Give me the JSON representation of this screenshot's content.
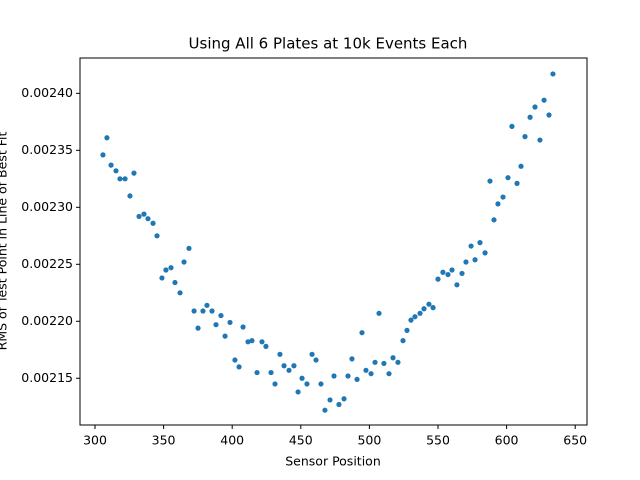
{
  "chart_data": {
    "type": "scatter",
    "title": "Using All 6 Plates at 10k Events Each",
    "x_label": "Sensor Position",
    "y_label": "RMS of Test Point in Line of Best Fit",
    "color": "#1f77b4",
    "x": [
      305.8,
      308.7,
      311.7,
      315.3,
      318.2,
      321.9,
      325.5,
      328.4,
      332.1,
      335.7,
      338.6,
      342.3,
      345.2,
      348.8,
      351.7,
      355.4,
      358.3,
      362.0,
      364.9,
      368.5,
      372.2,
      375.1,
      378.7,
      381.6,
      385.3,
      388.2,
      391.8,
      394.8,
      398.4,
      402.0,
      405.0,
      407.9,
      411.5,
      414.4,
      418.1,
      421.7,
      424.6,
      428.3,
      431.2,
      434.8,
      437.8,
      441.4,
      445.0,
      448.0,
      450.9,
      454.5,
      458.2,
      461.1,
      464.7,
      467.6,
      471.3,
      474.2,
      477.8,
      481.5,
      484.4,
      487.3,
      491.0,
      494.6,
      497.5,
      501.2,
      504.1,
      507.0,
      510.6,
      514.3,
      517.2,
      520.8,
      524.5,
      527.4,
      530.3,
      533.2,
      536.9,
      539.8,
      543.4,
      546.4,
      550.0,
      553.6,
      557.3,
      560.2,
      563.8,
      567.5,
      570.4,
      574.1,
      577.0,
      580.6,
      584.3,
      587.9,
      590.8,
      593.7,
      597.4,
      601.0,
      603.9,
      607.6,
      610.5,
      613.4,
      617.1,
      620.7,
      624.3,
      627.3,
      630.9,
      633.8
    ],
    "values": [
      0.002346,
      0.002361,
      0.002337,
      0.002332,
      0.002325,
      0.002325,
      0.00231,
      0.00233,
      0.002292,
      0.002294,
      0.00229,
      0.002286,
      0.002275,
      0.002238,
      0.002245,
      0.002247,
      0.002234,
      0.002225,
      0.002252,
      0.002264,
      0.002209,
      0.002194,
      0.002209,
      0.002214,
      0.002209,
      0.002197,
      0.002205,
      0.002187,
      0.002199,
      0.002166,
      0.00216,
      0.002195,
      0.002182,
      0.002183,
      0.002155,
      0.002182,
      0.002178,
      0.002155,
      0.002145,
      0.002171,
      0.002161,
      0.002157,
      0.002161,
      0.002138,
      0.00215,
      0.002145,
      0.002171,
      0.002166,
      0.002145,
      0.002122,
      0.002131,
      0.002152,
      0.002127,
      0.002132,
      0.002152,
      0.002167,
      0.002149,
      0.00219,
      0.002157,
      0.002154,
      0.002164,
      0.002207,
      0.002163,
      0.002154,
      0.002168,
      0.002164,
      0.002183,
      0.002192,
      0.002201,
      0.002204,
      0.002207,
      0.002211,
      0.002215,
      0.002212,
      0.002237,
      0.002243,
      0.002241,
      0.002245,
      0.002232,
      0.002242,
      0.002252,
      0.002266,
      0.002254,
      0.002269,
      0.00226,
      0.002323,
      0.002289,
      0.002303,
      0.002309,
      0.002326,
      0.002371,
      0.002321,
      0.002336,
      0.002362,
      0.002379,
      0.002388,
      0.002359,
      0.002394,
      0.002381,
      0.002417
    ],
    "xlim": [
      289.07,
      658.6
    ],
    "xticks": [
      300,
      350,
      400,
      450,
      500,
      550,
      600,
      650
    ],
    "ylim": [
      0.002109,
      0.002431
    ],
    "yticks": [
      0.00215,
      {
        "value": 0.0022,
        "label": "0.00220"
      },
      0.00225,
      {
        "value": 0.0023,
        "label": "0.00230"
      },
      0.00235,
      {
        "value": 0.0024,
        "label": "0.00240"
      }
    ]
  }
}
